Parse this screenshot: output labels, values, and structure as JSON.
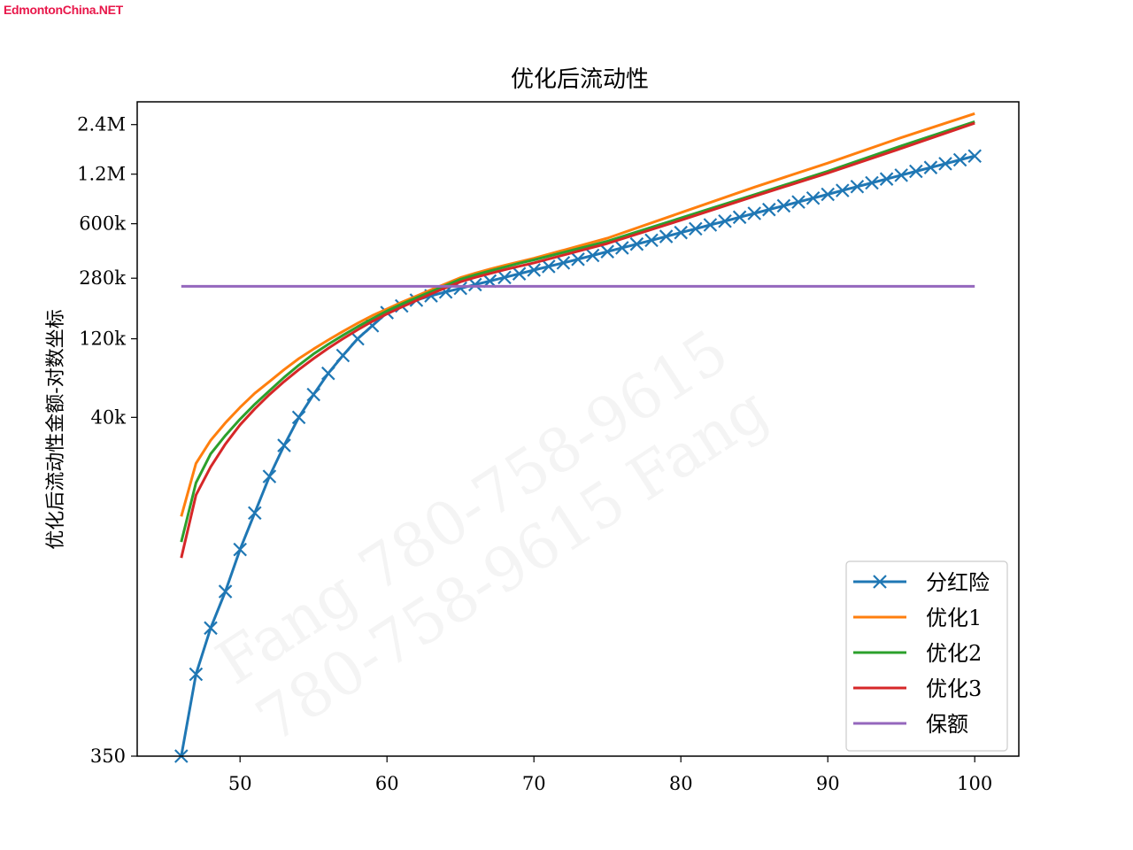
{
  "brand": "EdmontonChina.NET",
  "watermarks": [
    "Fang   780-758-9615",
    "780-758-9615   Fang"
  ],
  "chart_data": {
    "type": "line",
    "title": "优化后流动性",
    "xlabel": "",
    "ylabel": "优化后流动性金额-对数坐标",
    "yscale": "log",
    "xlim": [
      43,
      103
    ],
    "ylim": [
      350,
      3300000
    ],
    "xticks": [
      50,
      60,
      70,
      80,
      90,
      100
    ],
    "yticks": [
      {
        "value": 350,
        "label": "350"
      },
      {
        "value": 40000,
        "label": "40k"
      },
      {
        "value": 120000,
        "label": "120k"
      },
      {
        "value": 280000,
        "label": "280k"
      },
      {
        "value": 600000,
        "label": "600k"
      },
      {
        "value": 1200000,
        "label": "1.2M"
      },
      {
        "value": 2400000,
        "label": "2.4M"
      }
    ],
    "grid": false,
    "legend_position": "lower right",
    "series": [
      {
        "name": "分红险",
        "color": "#1f77b4",
        "marker": "x",
        "x": [
          46,
          47,
          48,
          49,
          50,
          51,
          52,
          53,
          54,
          55,
          56,
          57,
          58,
          59,
          60,
          61,
          62,
          63,
          64,
          65,
          66,
          67,
          68,
          69,
          70,
          71,
          72,
          73,
          74,
          75,
          76,
          77,
          78,
          79,
          80,
          81,
          82,
          83,
          84,
          85,
          86,
          87,
          88,
          89,
          90,
          91,
          92,
          93,
          94,
          95,
          96,
          97,
          98,
          99,
          100
        ],
        "y": [
          350,
          1100,
          2100,
          3500,
          6300,
          10500,
          17500,
          27000,
          40000,
          55000,
          74000,
          95000,
          120000,
          144000,
          173000,
          190000,
          206000,
          219000,
          231000,
          243000,
          256000,
          269000,
          283000,
          298000,
          314000,
          330000,
          347000,
          365000,
          385000,
          406000,
          428000,
          451000,
          476000,
          502000,
          530000,
          559000,
          590000,
          622000,
          657000,
          693000,
          731000,
          771000,
          813000,
          858000,
          905000,
          955000,
          1008000,
          1063000,
          1121000,
          1183000,
          1248000,
          1317000,
          1389000,
          1466000,
          1546000
        ]
      },
      {
        "name": "优化1",
        "color": "#ff7f0e",
        "marker": "",
        "x": [
          46,
          47,
          48,
          49,
          50,
          51,
          52,
          53,
          54,
          55,
          56,
          57,
          58,
          59,
          60,
          61,
          62,
          63,
          64,
          65,
          66,
          67,
          68,
          69,
          70,
          75,
          80,
          85,
          90,
          95,
          100
        ],
        "y": [
          10000,
          21000,
          29000,
          37000,
          46000,
          56000,
          66000,
          78000,
          91000,
          104000,
          118000,
          133000,
          149000,
          166000,
          182000,
          200000,
          218000,
          238000,
          259000,
          282000,
          300000,
          318000,
          335000,
          352000,
          370000,
          490000,
          700000,
          1000000,
          1400000,
          2000000,
          2800000
        ]
      },
      {
        "name": "优化2",
        "color": "#2ca02c",
        "marker": "",
        "x": [
          46,
          47,
          48,
          49,
          50,
          51,
          52,
          53,
          54,
          55,
          56,
          57,
          58,
          59,
          60,
          61,
          62,
          63,
          64,
          65,
          66,
          67,
          68,
          69,
          70,
          75,
          80,
          85,
          90,
          95,
          100
        ],
        "y": [
          7000,
          16000,
          24000,
          31000,
          39000,
          48000,
          58000,
          70000,
          83000,
          97000,
          111000,
          126000,
          142000,
          159000,
          177000,
          195000,
          213000,
          232000,
          253000,
          276000,
          293000,
          310000,
          327000,
          345000,
          362000,
          470000,
          650000,
          900000,
          1250000,
          1780000,
          2500000
        ]
      },
      {
        "name": "优化3",
        "color": "#d62728",
        "marker": "",
        "x": [
          46,
          47,
          48,
          49,
          50,
          51,
          52,
          53,
          54,
          55,
          56,
          57,
          58,
          59,
          60,
          61,
          62,
          63,
          64,
          65,
          66,
          67,
          68,
          69,
          70,
          75,
          80,
          85,
          90,
          95,
          100
        ],
        "y": [
          5600,
          13500,
          20000,
          27500,
          36000,
          45000,
          55000,
          66000,
          78000,
          91000,
          105000,
          120000,
          136000,
          153000,
          170000,
          187000,
          205000,
          225000,
          245000,
          266000,
          283000,
          299000,
          315000,
          331000,
          347000,
          455000,
          630000,
          880000,
          1220000,
          1720000,
          2450000
        ]
      },
      {
        "name": "保额",
        "color": "#9467bd",
        "marker": "",
        "x": [
          46,
          100
        ],
        "y": [
          250000,
          250000
        ]
      }
    ]
  }
}
